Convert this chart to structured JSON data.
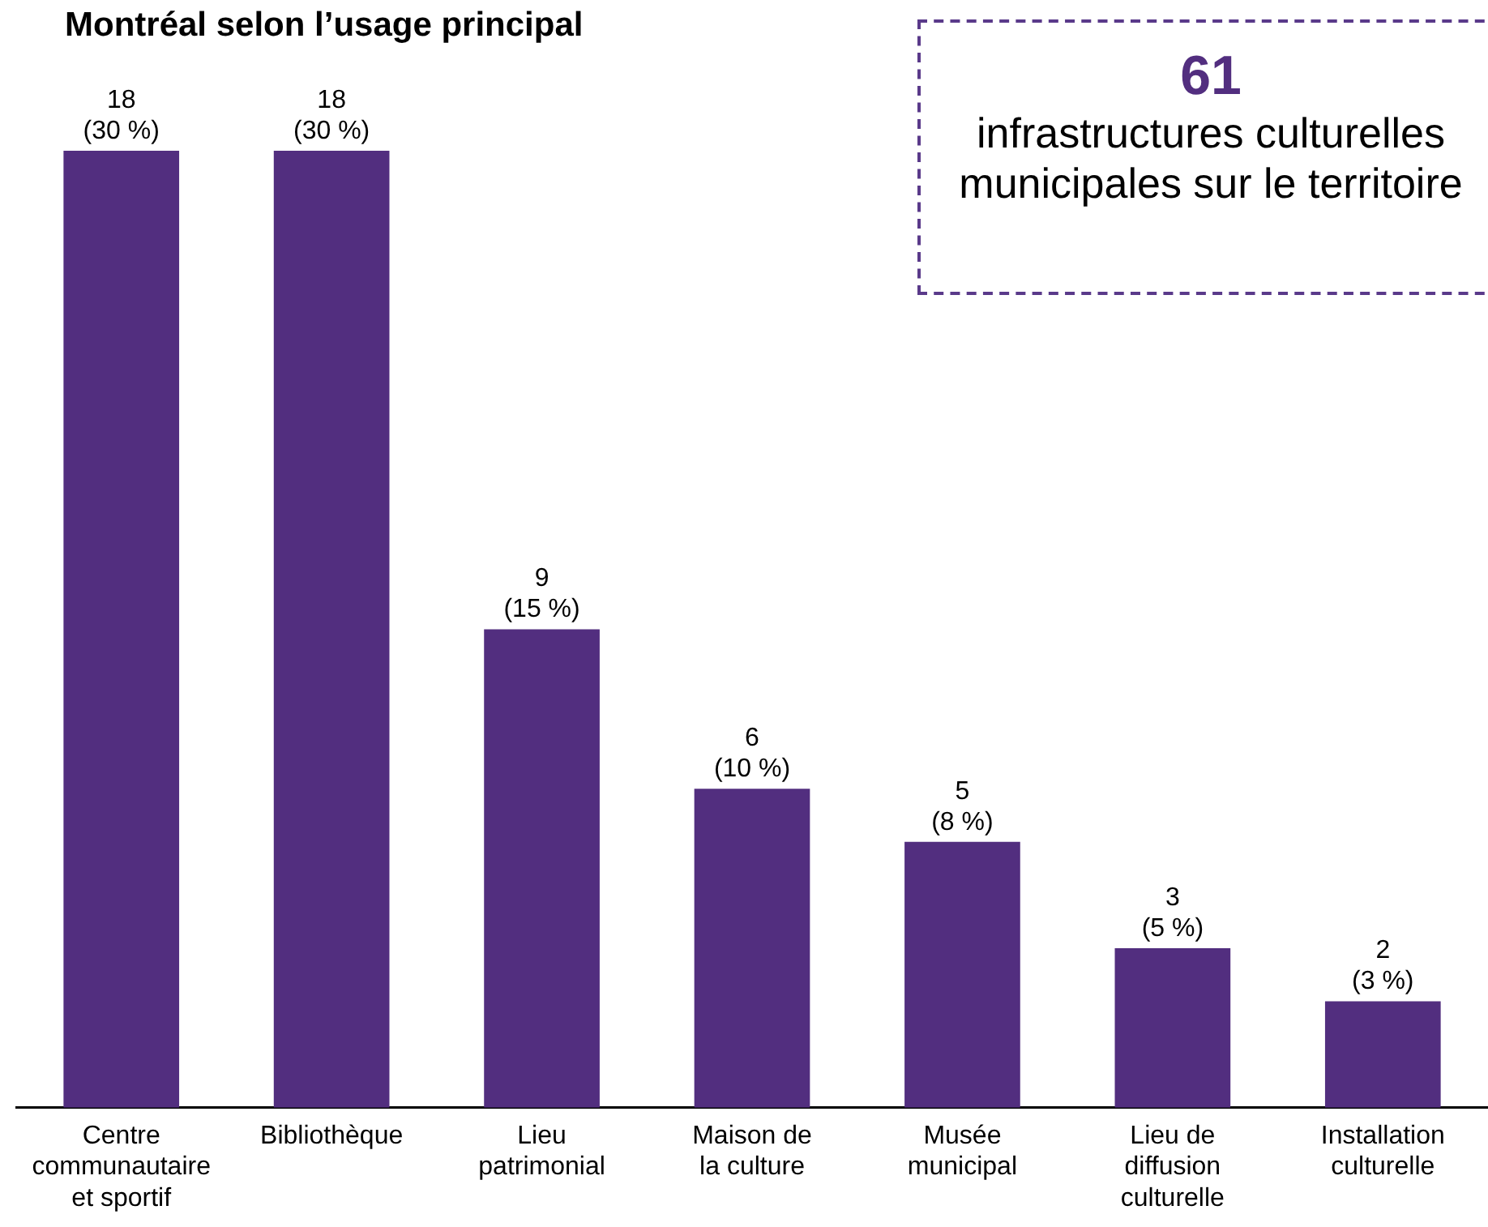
{
  "chart_data": {
    "type": "bar",
    "title": "Montréal selon l’usage principal",
    "categories": [
      "Centre communautaire et sportif",
      "Bibliothèque",
      "Lieu patrimonial",
      "Maison de la culture",
      "Musée municipal",
      "Lieu de diffusion culturelle",
      "Installation culturelle"
    ],
    "values": [
      18,
      18,
      9,
      6,
      5,
      3,
      2
    ],
    "value_labels": [
      "18\n(30 %)",
      "18\n(30 %)",
      "9\n(15 %)",
      "6\n(10 %)",
      "5\n(8 %)",
      "3\n(5 %)",
      "2\n(3 %)"
    ],
    "color": "#522e7f",
    "annotations": [
      "61",
      "infrastructures culturelles municipales sur le territoire"
    ],
    "grid": false,
    "legend": false
  }
}
